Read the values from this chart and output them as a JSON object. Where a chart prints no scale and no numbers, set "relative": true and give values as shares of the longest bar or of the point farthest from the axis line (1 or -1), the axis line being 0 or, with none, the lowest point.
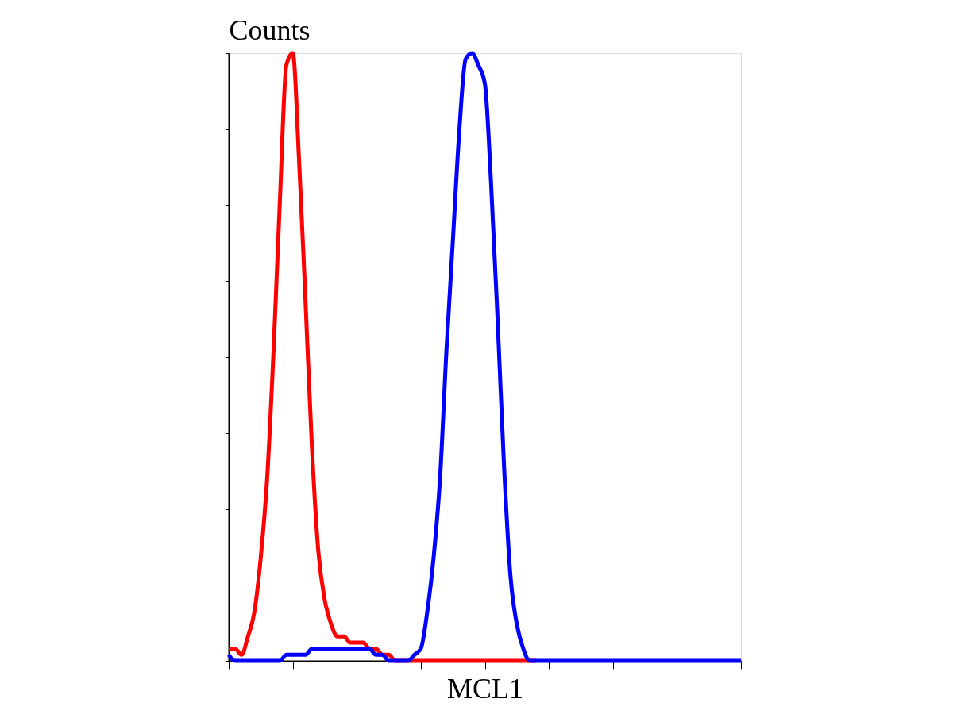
{
  "chart_data": {
    "type": "line",
    "relative": true,
    "tick_labels": false,
    "ylabel": "Counts",
    "xlabel": "MCL1",
    "categories": [
      null,
      null,
      null,
      null,
      null,
      null,
      null,
      null,
      null,
      null,
      null,
      null,
      null,
      null,
      null,
      null,
      null,
      null,
      null,
      null,
      null,
      null,
      null,
      null,
      null,
      null,
      null,
      null,
      null,
      null,
      null,
      null,
      null,
      null,
      null,
      null,
      null,
      null,
      null,
      null,
      null,
      null,
      null,
      null,
      null,
      null,
      null,
      null,
      null,
      null,
      null,
      null,
      null,
      null,
      null,
      null,
      null,
      null,
      null,
      null,
      null,
      null,
      null,
      null,
      null,
      null,
      null,
      null,
      null,
      null,
      null,
      null,
      null,
      null,
      null,
      null,
      null,
      null,
      null,
      null,
      null
    ],
    "series": [
      {
        "color": "#ff0000",
        "values": [
          0.02,
          0.02,
          0.01,
          0.04,
          0.08,
          0.17,
          0.3,
          0.51,
          0.76,
          0.98,
          1,
          0.82,
          0.59,
          0.35,
          0.18,
          0.1,
          0.06,
          0.04,
          0.04,
          0.03,
          0.03,
          0.03,
          0.02,
          0.02,
          0.01,
          0.01,
          0,
          0,
          0,
          0,
          0,
          0,
          0,
          0,
          0,
          0,
          0,
          0,
          0,
          0,
          0,
          0,
          0,
          0,
          0,
          0,
          0,
          0,
          0,
          null,
          null,
          null,
          null,
          null,
          null,
          null,
          null,
          null,
          null,
          null,
          null,
          null,
          null,
          null,
          null,
          null,
          null,
          null,
          null,
          null,
          null,
          null,
          null,
          null,
          null,
          null,
          null,
          null,
          null,
          null,
          null
        ]
      },
      {
        "color": "#0000ff",
        "values": [
          0.01,
          0,
          0,
          0,
          0,
          0,
          0,
          0,
          0,
          0.01,
          0.01,
          0.01,
          0.01,
          0.02,
          0.02,
          0.02,
          0.02,
          0.02,
          0.02,
          0.02,
          0.02,
          0.02,
          0.02,
          0.01,
          0.01,
          0,
          0,
          0,
          0,
          0.01,
          0.02,
          0.08,
          0.17,
          0.3,
          0.51,
          0.69,
          0.87,
          0.99,
          1,
          0.98,
          0.95,
          0.78,
          0.56,
          0.32,
          0.14,
          0.06,
          0.02,
          0,
          0,
          0,
          0,
          0,
          0,
          0,
          0,
          0,
          0,
          0,
          0,
          0,
          0,
          0,
          0,
          0,
          0,
          0,
          0,
          0,
          0,
          0,
          0,
          0,
          0,
          0,
          0,
          0,
          0,
          0,
          0,
          0,
          0
        ]
      }
    ]
  }
}
